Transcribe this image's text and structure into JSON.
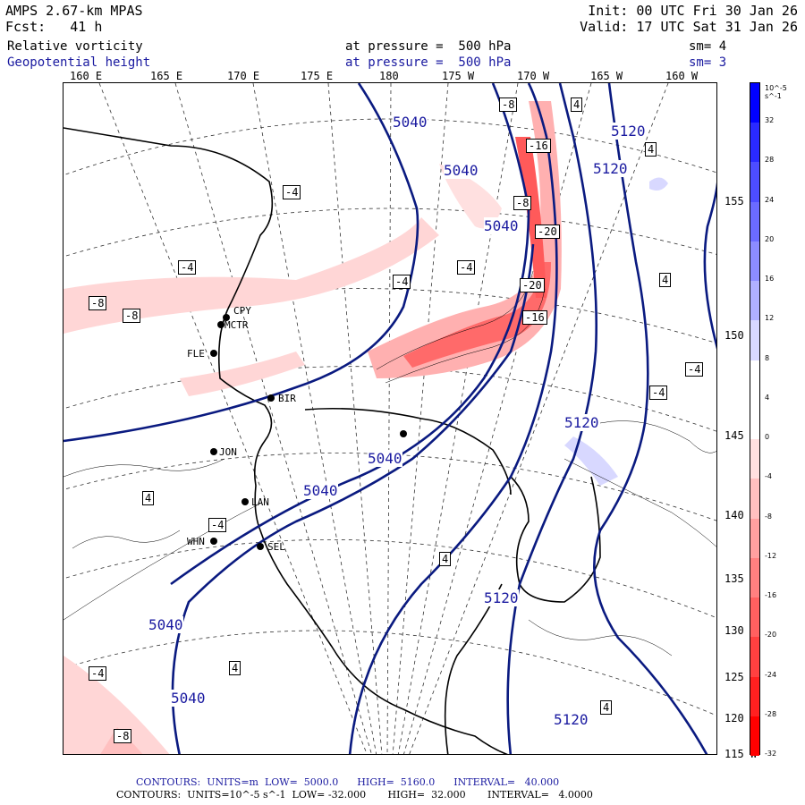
{
  "header": {
    "model": "AMPS 2.67-km MPAS",
    "init": "Init: 00 UTC Fri 30 Jan 26",
    "fcst": "Fcst:   41 h",
    "valid": "Valid: 17 UTC Sat 31 Jan 26",
    "field1": {
      "name": "Relative vorticity",
      "level": "at pressure =  500 hPa",
      "smooth": "sm= 4"
    },
    "field2": {
      "name": "Geopotential height",
      "level": "at pressure =  500 hPa",
      "smooth": "sm= 3"
    }
  },
  "longitudes": [
    "160 E",
    "165 E",
    "170 E",
    "175 E",
    "180",
    "175 W",
    "170 W",
    "165 W",
    "160 W"
  ],
  "latitudes": [
    "155 W",
    "150 W",
    "145 W",
    "140 W",
    "135 W",
    "130 W",
    "125 W",
    "120 W",
    "115 W"
  ],
  "colorbar": {
    "unit": "10^-5 s^-1",
    "labels": [
      "32",
      "28",
      "24",
      "20",
      "16",
      "12",
      "8",
      "4",
      "0",
      "-4",
      "-8",
      "-12",
      "-16",
      "-20",
      "-24",
      "-28",
      "-32"
    ],
    "colors": [
      "#0000ff",
      "#2a2aff",
      "#4d4dff",
      "#6b6bff",
      "#8c8cff",
      "#b0b0ff",
      "#d8d8ff",
      "#ffffff",
      "#ffffff",
      "#ffe0e0",
      "#ffc0c0",
      "#ffa0a0",
      "#ff8080",
      "#ff6060",
      "#ff4040",
      "#ff2020",
      "#ff0000"
    ]
  },
  "stations": [
    "CPY",
    "MCTR",
    "FLE",
    "BIR",
    "LAN",
    "WHN",
    "SEL",
    "JON"
  ],
  "height_contours": {
    "units": "m",
    "levels": [
      5040,
      5120
    ],
    "labels": [
      "5040",
      "5040",
      "5040",
      "5040",
      "5040",
      "5040",
      "5040",
      "5120",
      "5120",
      "5120",
      "5120",
      "5120"
    ]
  },
  "vorticity_labels": [
    "-8",
    "-16",
    "-8",
    "-20",
    "-20",
    "-16",
    "-4",
    "-4",
    "-4",
    "-4",
    "-8",
    "-8",
    "-4",
    "-4",
    "-8",
    "-4",
    "-4",
    "4",
    "4",
    "4",
    "4",
    "4",
    "4",
    "4"
  ],
  "footer": {
    "line1": "CONTOURS:  UNITS=m  LOW=  5000.0      HIGH=  5160.0      INTERVAL=   40.000",
    "line2": "CONTOURS:  UNITS=10^-5 s^-1  LOW= -32.000       HIGH=  32.000       INTERVAL=   4.0000"
  }
}
